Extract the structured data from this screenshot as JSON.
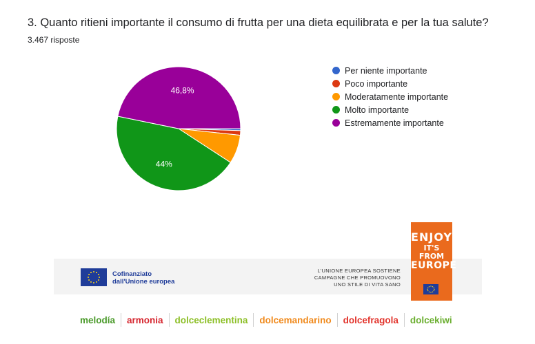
{
  "title": "3. Quanto ritieni importante il consumo di frutta per una dieta equilibrata e per la tua salute?",
  "subtitle": "3.467 risposte",
  "chart_data": {
    "type": "pie",
    "categories": [
      "Per niente importante",
      "Poco importante",
      "Moderatamente importante",
      "Molto importante",
      "Estremamente importante"
    ],
    "values": [
      0.5,
      1.2,
      7.5,
      44,
      46.8
    ],
    "data_labels": [
      "",
      "",
      "",
      "44%",
      "46,8%"
    ],
    "colors": [
      "#3366cc",
      "#dc3912",
      "#ff9900",
      "#109618",
      "#990099"
    ],
    "legend_position": "right"
  },
  "footer": {
    "cofinanced": "Cofinanziato",
    "eu_name": "dall'Unione europea",
    "support_line1": "L'UNIONE EUROPEA SOSTIENE",
    "support_line2": "CAMPAGNE CHE PROMUOVONO",
    "support_line3": "UNO STILE DI VITA SANO",
    "enjoy_line1": "ENJOY",
    "enjoy_line2": "IT'S FROM",
    "enjoy_line3": "EUROPE",
    "brands": [
      {
        "name": "melodía",
        "color": "#4a9a2a"
      },
      {
        "name": "armonia",
        "color": "#d6262f"
      },
      {
        "name": "dolceclementina",
        "color": "#8cbf26"
      },
      {
        "name": "dolcemandarino",
        "color": "#f08a1d"
      },
      {
        "name": "dolcefragola",
        "color": "#e2332b"
      },
      {
        "name": "dolcekiwi",
        "color": "#6aae2f"
      }
    ]
  }
}
